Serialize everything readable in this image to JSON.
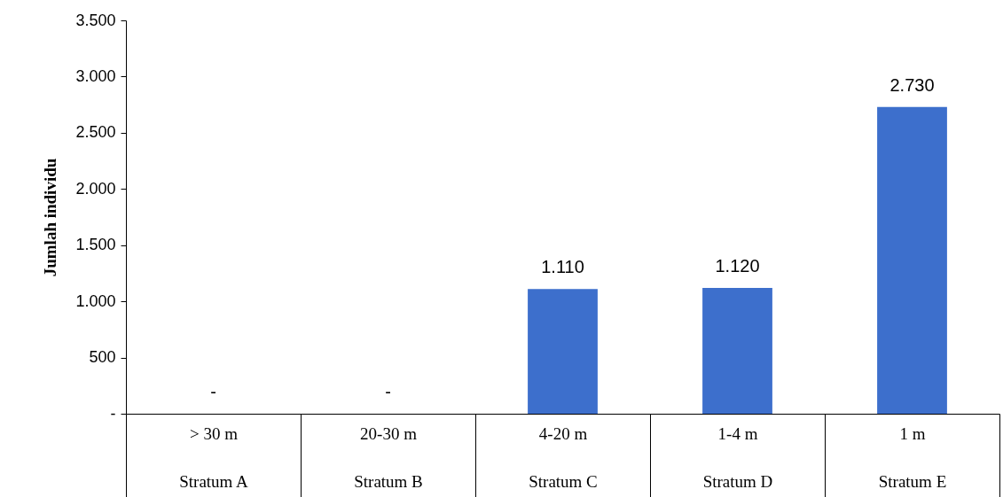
{
  "chart_data": {
    "type": "bar",
    "ylabel": "Jumlah individu",
    "categories": [
      "> 30 m\nStratum A",
      "20-30 m\nStratum B",
      "4-20 m\nStratum C",
      "1-4 m\nStratum D",
      "1 m\nStratum E"
    ],
    "values": [
      0,
      0,
      1110,
      1120,
      2730
    ],
    "value_labels": [
      "-",
      "-",
      "1.110",
      "1.120",
      "2.730"
    ],
    "color": "#3d6fcc",
    "ylim": [
      0,
      3500
    ],
    "yticks": [
      {
        "value": 0,
        "label": "-"
      },
      500,
      {
        "value": 1000,
        "label": "1.000"
      },
      {
        "value": 1500,
        "label": "1.500"
      },
      {
        "value": 2000,
        "label": "2.000"
      },
      {
        "value": 2500,
        "label": "2.500"
      },
      {
        "value": 3000,
        "label": "3.000"
      },
      {
        "value": 3500,
        "label": "3.500"
      }
    ]
  }
}
